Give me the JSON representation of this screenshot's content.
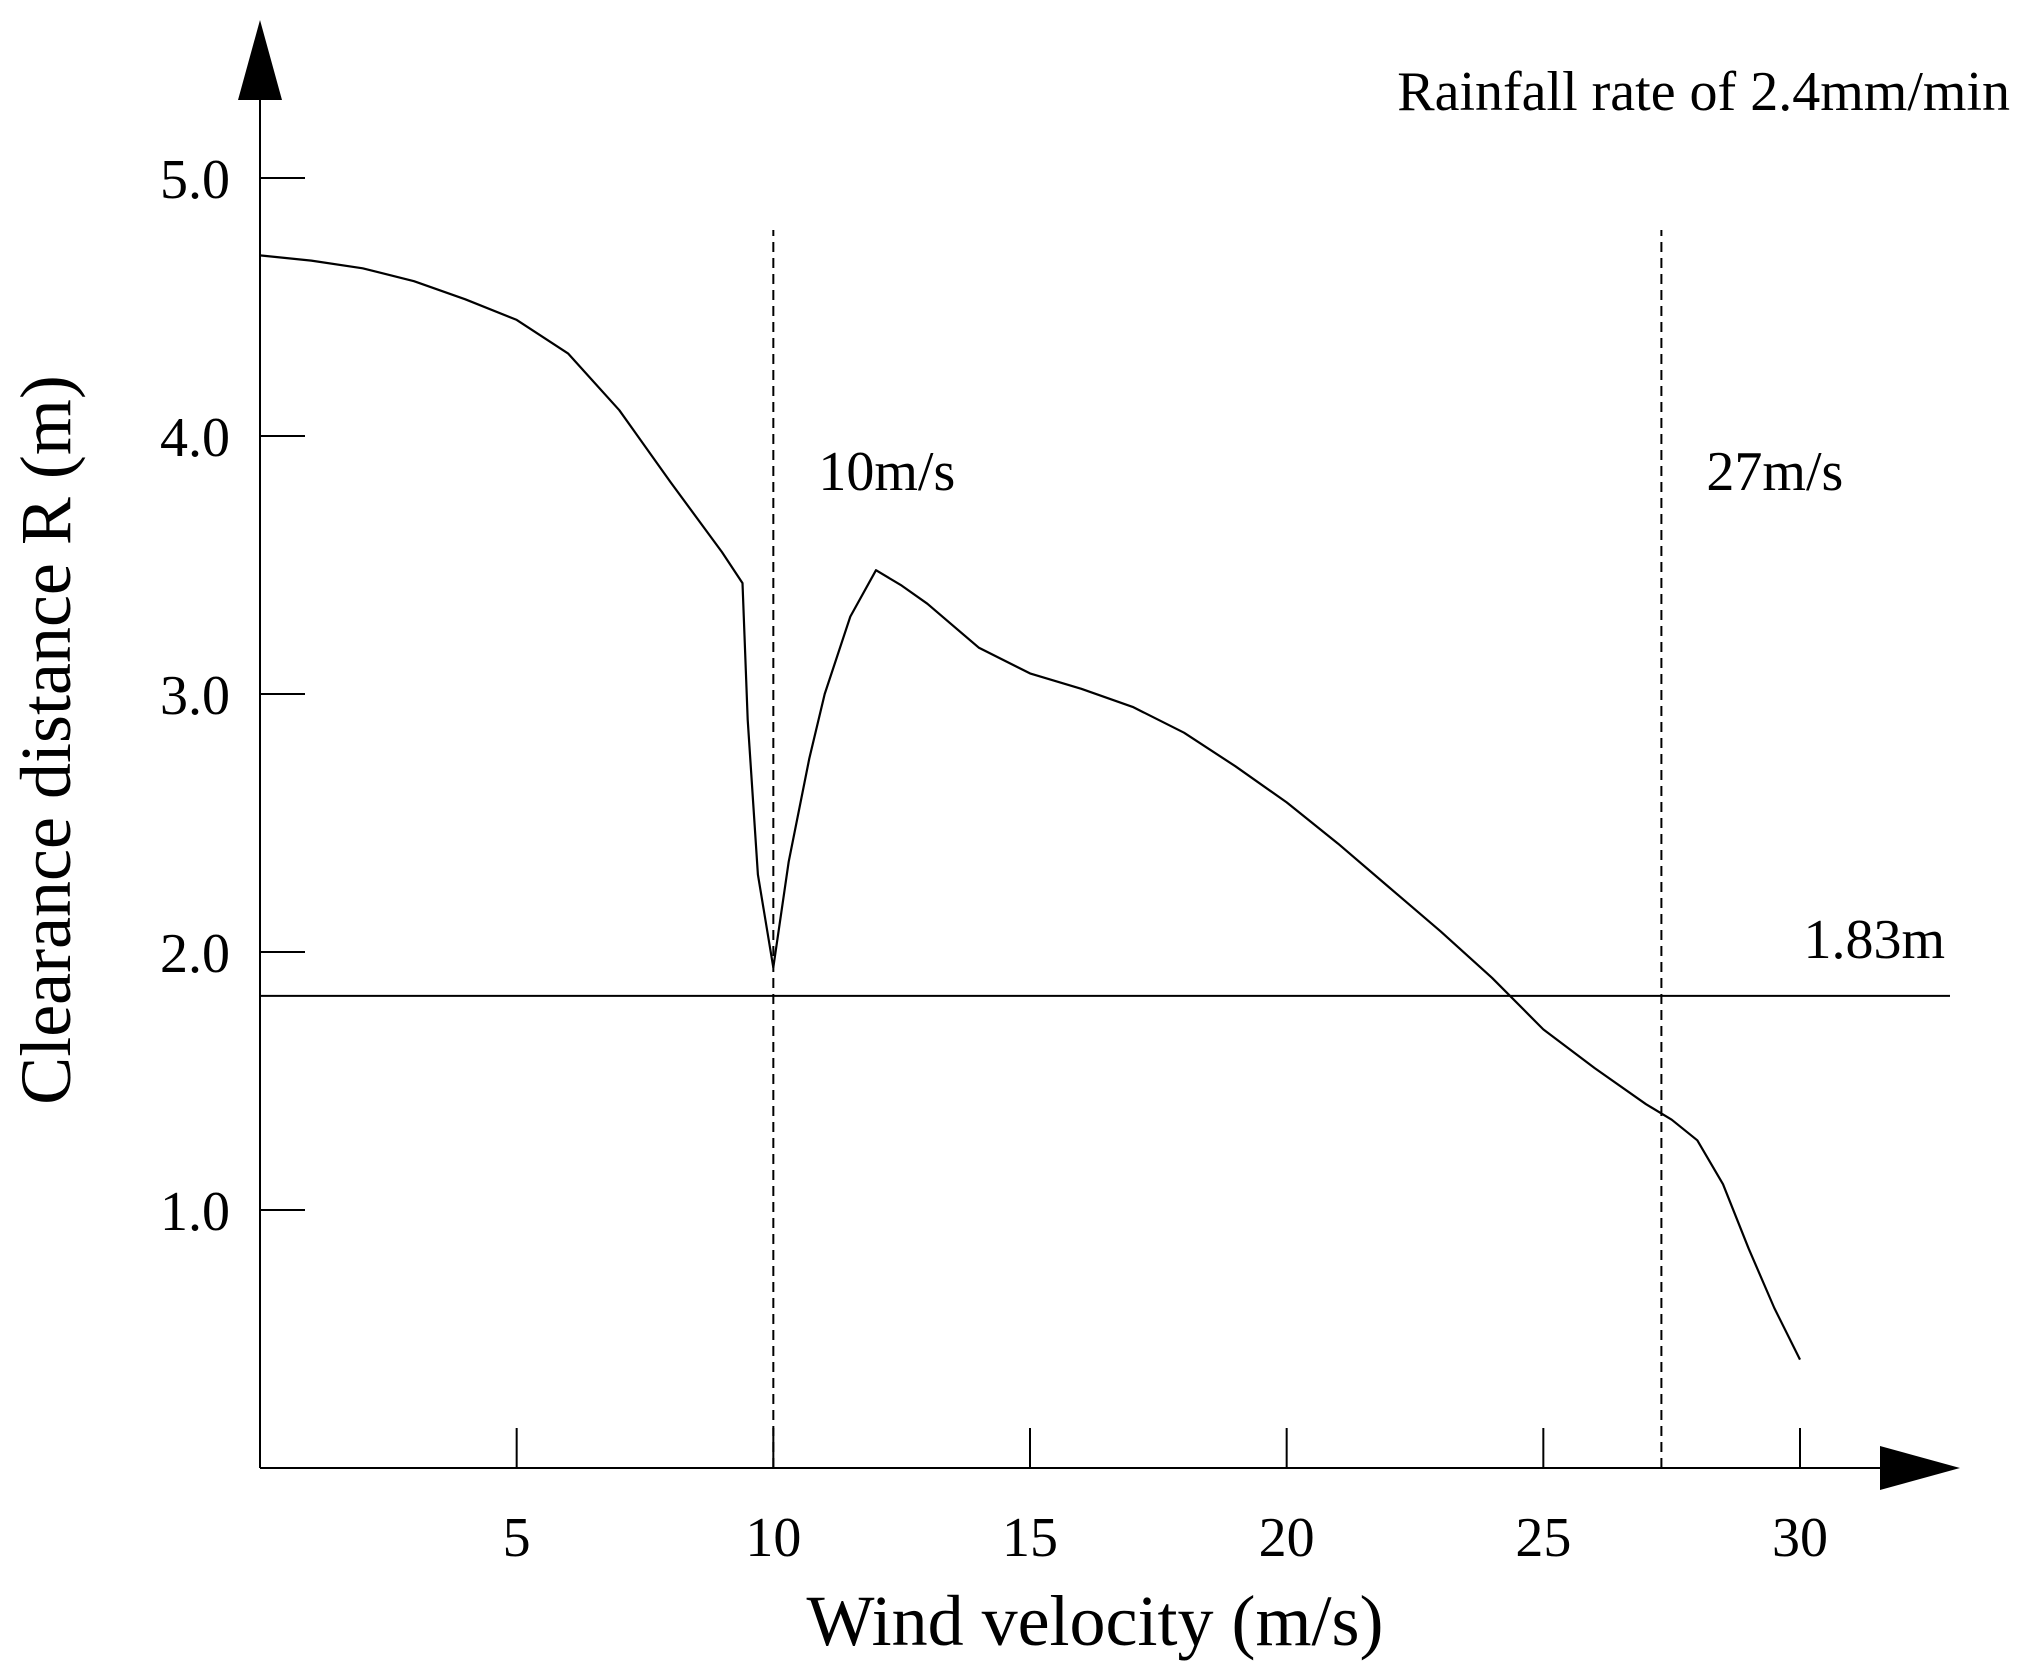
{
  "chart_data": {
    "type": "line",
    "title": "Rainfall rate of 2.4mm/min",
    "xlabel": "Wind velocity (m/s)",
    "ylabel": "Clearance distance R (m)",
    "xlim": [
      0,
      33
    ],
    "ylim": [
      0,
      5.5
    ],
    "x_ticks": [
      5,
      10,
      15,
      20,
      25,
      30
    ],
    "x_tick_labels": [
      "5",
      "10",
      "15",
      "20",
      "25",
      "30"
    ],
    "y_ticks": [
      1.0,
      2.0,
      3.0,
      4.0,
      5.0
    ],
    "y_tick_labels": [
      "1.0",
      "2.0",
      "3.0",
      "4.0",
      "5.0"
    ],
    "grid": false,
    "series": [
      {
        "name": "Clearance distance",
        "x": [
          0,
          1,
          2,
          3,
          4,
          5,
          6,
          7,
          8,
          9,
          9.4,
          9.5,
          9.7,
          10,
          10.3,
          10.7,
          11,
          11.5,
          12,
          12.5,
          13,
          14,
          15,
          16,
          17,
          18,
          19,
          20,
          21,
          22,
          23,
          24,
          25,
          26,
          27,
          27.5,
          28,
          28.5,
          29,
          29.5,
          30
        ],
        "y": [
          4.7,
          4.68,
          4.65,
          4.6,
          4.53,
          4.45,
          4.32,
          4.1,
          3.82,
          3.55,
          3.43,
          2.9,
          2.3,
          1.94,
          2.35,
          2.75,
          3.0,
          3.3,
          3.48,
          3.42,
          3.35,
          3.18,
          3.08,
          3.02,
          2.95,
          2.85,
          2.72,
          2.58,
          2.42,
          2.25,
          2.08,
          1.9,
          1.7,
          1.55,
          1.41,
          1.35,
          1.27,
          1.1,
          0.85,
          0.62,
          0.42
        ]
      }
    ],
    "reference_lines": [
      {
        "orientation": "horizontal",
        "value": 1.83,
        "label": "1.83m",
        "style": "solid"
      },
      {
        "orientation": "vertical",
        "value": 10,
        "label": "10m/s",
        "style": "dashed"
      },
      {
        "orientation": "vertical",
        "value": 27.3,
        "label": "27m/s",
        "style": "dashed"
      }
    ]
  }
}
